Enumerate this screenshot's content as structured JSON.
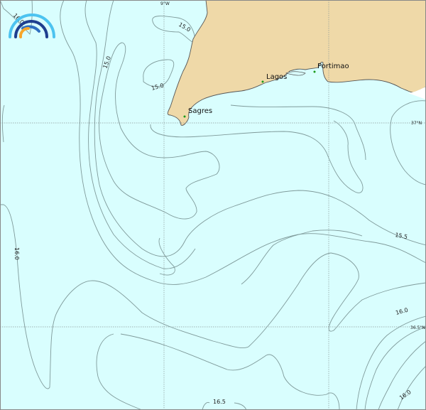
{
  "map": {
    "colors": {
      "water_base": "#d9fefe",
      "water_cool": "#b6fcfc",
      "water_warm": "#cefbc8",
      "land": "#efd9a8",
      "coastline": "#555555",
      "contour": "#7f9a9a",
      "city_marker": "#1a9a1a"
    },
    "gridlines": {
      "lon_label": "9°W",
      "lat_labels": [
        "37°N",
        "36.5°N"
      ]
    },
    "places": [
      {
        "name": "Sagres"
      },
      {
        "name": "Lagos"
      },
      {
        "name": "Portimao"
      }
    ],
    "contour_labels": [
      "16.0",
      "15.0",
      "15.0",
      "15.0",
      "15.5",
      "16.0",
      "16.0",
      "16.5",
      "16.0"
    ],
    "logo": {
      "icon": "rainbow-arcs-logo",
      "colors": [
        "#4cc3f0",
        "#1f3f8f",
        "#2f6fc0",
        "#f7a62a"
      ]
    }
  }
}
